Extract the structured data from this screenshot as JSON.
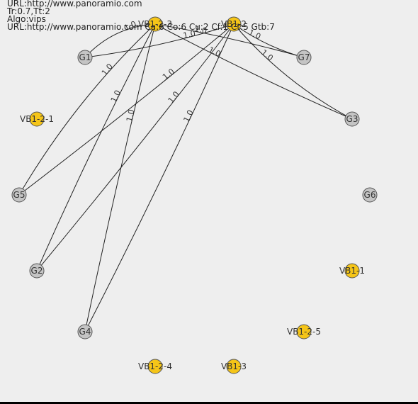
{
  "header": {
    "line1": "URL:http://www.panoramio.com",
    "line2": "Tr:0.7,Tt:2",
    "line3": "Algo:vips",
    "line4": "URL:http://www.panoramio.com Ca:6 Co:6 Cu:2 Cf:1 Ct:5 Gtb:7"
  },
  "colors": {
    "yellow_node": "#f5c518",
    "gray_node": "#c4c4c4",
    "edge": "#222222",
    "background": "#eeeeee"
  },
  "nodes": [
    {
      "id": "VB1-2-3",
      "label": "VB1-2-3",
      "type": "yellow"
    },
    {
      "id": "VB1-2",
      "label": "VB1-2",
      "type": "yellow"
    },
    {
      "id": "G1",
      "label": "G1",
      "type": "gray"
    },
    {
      "id": "G7",
      "label": "G7",
      "type": "gray"
    },
    {
      "id": "VB1-2-1",
      "label": "VB1-2-1",
      "type": "yellow"
    },
    {
      "id": "G3",
      "label": "G3",
      "type": "gray"
    },
    {
      "id": "G5",
      "label": "G5",
      "type": "gray"
    },
    {
      "id": "G6",
      "label": "G6",
      "type": "gray"
    },
    {
      "id": "G2",
      "label": "G2",
      "type": "gray"
    },
    {
      "id": "VB1-1",
      "label": "VB1-1",
      "type": "yellow"
    },
    {
      "id": "G4",
      "label": "G4",
      "type": "gray"
    },
    {
      "id": "VB1-2-5",
      "label": "VB1-2-5",
      "type": "yellow"
    },
    {
      "id": "VB1-2-4",
      "label": "VB1-2-4",
      "type": "yellow"
    },
    {
      "id": "VB1-3",
      "label": "VB1-3",
      "type": "yellow"
    }
  ],
  "edges": [
    {
      "source": "VB1-2-3",
      "target": "G1",
      "label": "1.0"
    },
    {
      "source": "VB1-2",
      "target": "G1",
      "label": "1.0"
    },
    {
      "source": "VB1-2-3",
      "target": "G7",
      "label": "1.0"
    },
    {
      "source": "VB1-2",
      "target": "G7",
      "label": "1.0"
    },
    {
      "source": "VB1-2-3",
      "target": "G3",
      "label": "1.0"
    },
    {
      "source": "VB1-2",
      "target": "G3",
      "label": "1.0"
    },
    {
      "source": "VB1-2-3",
      "target": "G5",
      "label": "1.0"
    },
    {
      "source": "VB1-2",
      "target": "G5",
      "label": "1.0"
    },
    {
      "source": "VB1-2-3",
      "target": "G2",
      "label": "1.0"
    },
    {
      "source": "VB1-2",
      "target": "G2",
      "label": "1.0"
    },
    {
      "source": "VB1-2-3",
      "target": "G4",
      "label": "1.0"
    },
    {
      "source": "VB1-2",
      "target": "G4",
      "label": "1.0"
    }
  ]
}
